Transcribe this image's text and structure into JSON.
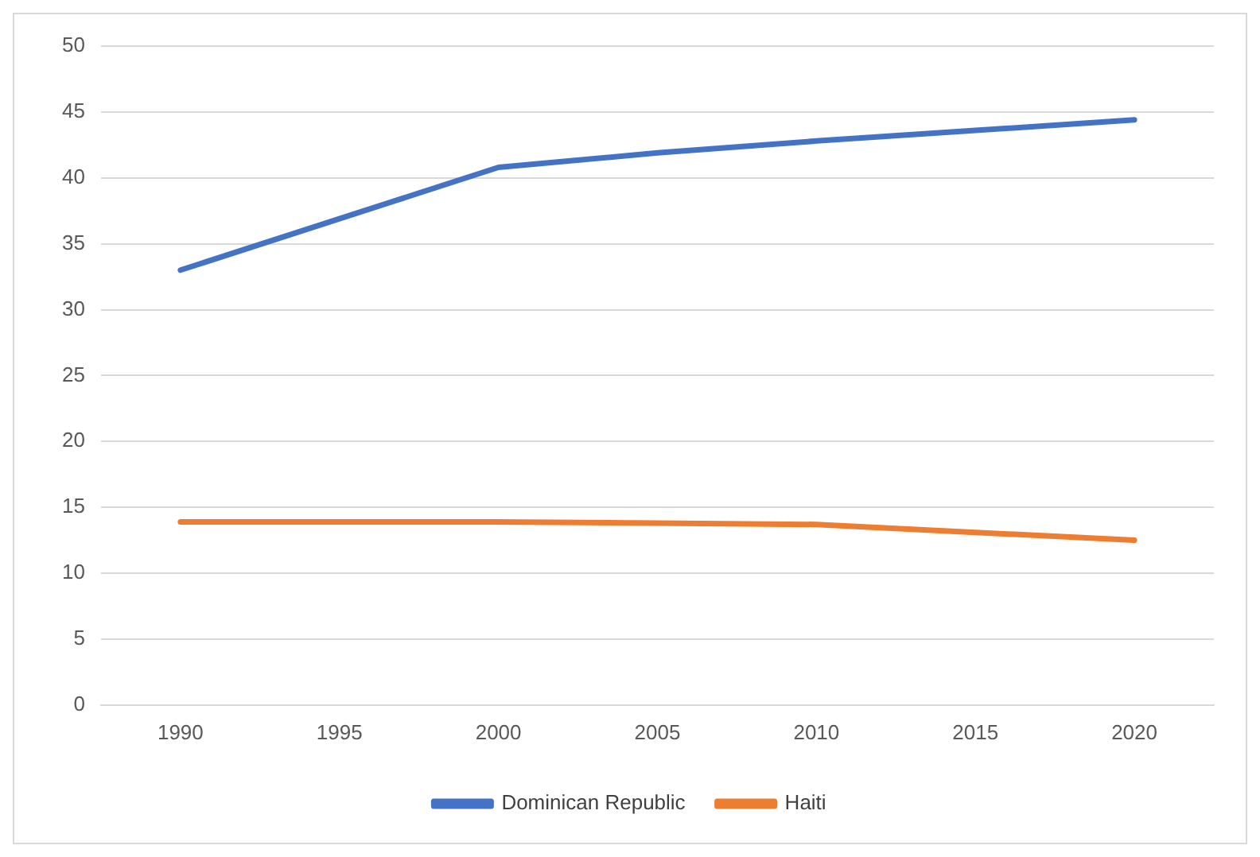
{
  "chart_data": {
    "type": "line",
    "categories": [
      "1990",
      "1995",
      "2000",
      "2005",
      "2010",
      "2015",
      "2020"
    ],
    "series": [
      {
        "name": "Dominican Republic",
        "color": "#4472c4",
        "values": [
          33,
          36.9,
          40.8,
          41.9,
          42.8,
          43.6,
          44.4
        ]
      },
      {
        "name": "Haiti",
        "color": "#ed7d31",
        "values": [
          13.9,
          13.9,
          13.9,
          13.8,
          13.7,
          13.1,
          12.5
        ]
      }
    ],
    "ylim": [
      0,
      50
    ],
    "yticks": [
      0,
      5,
      10,
      15,
      20,
      25,
      30,
      35,
      40,
      45,
      50
    ],
    "grid": "y",
    "legend": "bottom",
    "marker": "none",
    "line_style": "solid"
  }
}
